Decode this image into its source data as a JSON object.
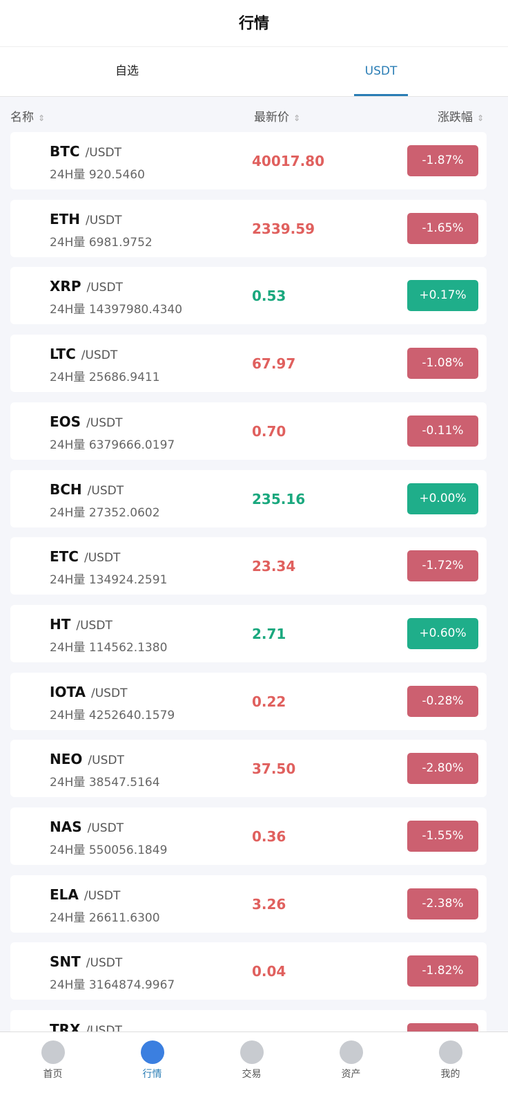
{
  "header": {
    "title": "行情"
  },
  "tabs": [
    "自选",
    "USDT"
  ],
  "columns": [
    "名称",
    "最新价",
    "涨跌幅"
  ],
  "rows": [
    {
      "symbol": "BTC",
      "quote": "/USDT",
      "volume": "24H量 920.5460",
      "price": "40017.80",
      "change": "-1.87%"
    },
    {
      "symbol": "ETH",
      "quote": "/USDT",
      "volume": "24H量 6981.9752",
      "price": "2339.59",
      "change": "-1.65%"
    },
    {
      "symbol": "XRP",
      "quote": "/USDT",
      "volume": "24H量 14397980.4340",
      "price": "0.53",
      "change": "+0.17%"
    },
    {
      "symbol": "LTC",
      "quote": "/USDT",
      "volume": "24H量 25686.9411",
      "price": "67.97",
      "change": "-1.08%"
    },
    {
      "symbol": "EOS",
      "quote": "/USDT",
      "volume": "24H量 6379666.0197",
      "price": "0.70",
      "change": "-0.11%"
    },
    {
      "symbol": "BCH",
      "quote": "/USDT",
      "volume": "24H量 27352.0602",
      "price": "235.16",
      "change": "+0.00%"
    },
    {
      "symbol": "ETC",
      "quote": "/USDT",
      "volume": "24H量 134924.2591",
      "price": "23.34",
      "change": "-1.72%"
    },
    {
      "symbol": "HT",
      "quote": "/USDT",
      "volume": "24H量 114562.1380",
      "price": "2.71",
      "change": "+0.60%"
    },
    {
      "symbol": "IOTA",
      "quote": "/USDT",
      "volume": "24H量 4252640.1579",
      "price": "0.22",
      "change": "-0.28%"
    },
    {
      "symbol": "NEO",
      "quote": "/USDT",
      "volume": "24H量 38547.5164",
      "price": "37.50",
      "change": "-2.80%"
    },
    {
      "symbol": "NAS",
      "quote": "/USDT",
      "volume": "24H量 550056.1849",
      "price": "0.36",
      "change": "-1.55%"
    },
    {
      "symbol": "ELA",
      "quote": "/USDT",
      "volume": "24H量 26611.6300",
      "price": "3.26",
      "change": "-2.38%"
    },
    {
      "symbol": "SNT",
      "quote": "/USDT",
      "volume": "24H量 3164874.9967",
      "price": "0.04",
      "change": "-1.82%"
    },
    {
      "symbol": "TRX",
      "quote": "/USDT"
    }
  ],
  "nav": [
    "首页",
    "行情",
    "交易",
    "资产",
    "我的"
  ],
  "active_nav": 1,
  "active_tab": 1
}
